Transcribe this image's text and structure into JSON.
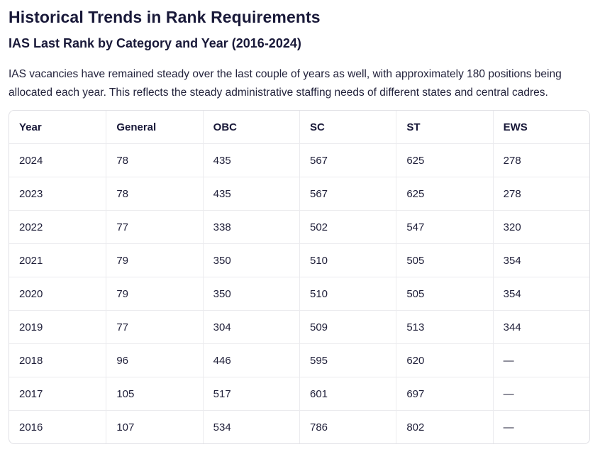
{
  "page": {
    "title": "Historical Trends in Rank Requirements",
    "subtitle": "IAS Last Rank by Category and Year (2016-2024)",
    "description": "IAS vacancies have remained steady over the last couple of years as well, with approximately 180 positions being allocated each year. This reflects the steady administrative staffing needs of different states and central cadres."
  },
  "table": {
    "columns": [
      "Year",
      "General",
      "OBC",
      "SC",
      "ST",
      "EWS"
    ],
    "rows": [
      [
        "2024",
        "78",
        "435",
        "567",
        "625",
        "278"
      ],
      [
        "2023",
        "78",
        "435",
        "567",
        "625",
        "278"
      ],
      [
        "2022",
        "77",
        "338",
        "502",
        "547",
        "320"
      ],
      [
        "2021",
        "79",
        "350",
        "510",
        "505",
        "354"
      ],
      [
        "2020",
        "79",
        "350",
        "510",
        "505",
        "354"
      ],
      [
        "2019",
        "77",
        "304",
        "509",
        "513",
        "344"
      ],
      [
        "2018",
        "96",
        "446",
        "595",
        "620",
        "—"
      ],
      [
        "2017",
        "105",
        "517",
        "601",
        "697",
        "—"
      ],
      [
        "2016",
        "107",
        "534",
        "786",
        "802",
        "—"
      ]
    ]
  },
  "colors": {
    "heading_text": "#191939",
    "body_text": "#23233c",
    "table_outer_border": "#e0e0e5",
    "table_grid_line": "#ebebee",
    "background": "#ffffff"
  }
}
